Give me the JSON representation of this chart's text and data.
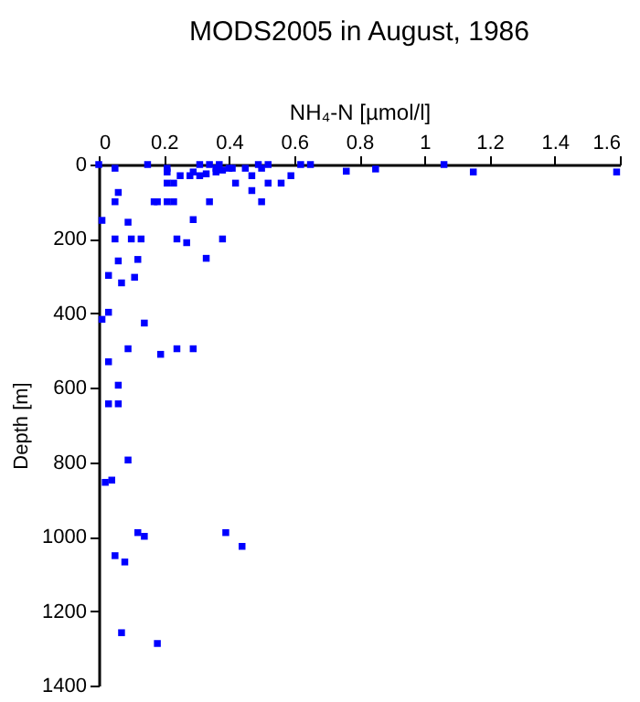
{
  "chart_data": {
    "type": "scatter",
    "title": "MODS2005 in August, 1986",
    "xlabel": "NH₄-N [µmol/l]",
    "ylabel": "Depth [m]",
    "xlim": [
      0,
      1.6
    ],
    "xticks": [
      0,
      0.2,
      0.4,
      0.6,
      0.8,
      1,
      1.2,
      1.4,
      1.6
    ],
    "ylim": [
      1400,
      0
    ],
    "yticks": [
      0,
      200,
      400,
      600,
      800,
      1000,
      1200,
      1400
    ],
    "grid": false,
    "marker": "square",
    "series": [
      {
        "color": "#0000ff",
        "x": [
          0.0,
          0.05,
          0.15,
          0.21,
          0.21,
          0.25,
          0.28,
          0.29,
          0.31,
          0.31,
          0.33,
          0.34,
          0.36,
          0.36,
          0.37,
          0.38,
          0.4,
          0.41,
          0.42,
          0.45,
          0.47,
          0.49,
          0.5,
          0.52,
          0.52,
          0.56,
          0.59,
          0.62,
          0.65,
          0.76,
          0.85,
          1.06,
          1.15,
          1.59,
          0.47,
          0.5,
          0.06,
          0.05,
          0.17,
          0.18,
          0.21,
          0.23,
          0.21,
          0.23,
          0.34,
          0.29,
          0.01,
          0.09,
          0.05,
          0.1,
          0.13,
          0.24,
          0.27,
          0.38,
          0.33,
          0.06,
          0.12,
          0.03,
          0.11,
          0.07,
          0.03,
          0.01,
          0.14,
          0.09,
          0.19,
          0.24,
          0.29,
          0.03,
          0.06,
          0.03,
          0.06,
          0.09,
          0.02,
          0.04,
          0.12,
          0.14,
          0.39,
          0.44,
          0.05,
          0.08,
          0.07,
          0.18
        ],
        "values": [
          0,
          10,
          0,
          10,
          20,
          30,
          30,
          20,
          0,
          30,
          25,
          0,
          10,
          20,
          0,
          15,
          10,
          10,
          50,
          10,
          30,
          0,
          10,
          0,
          50,
          50,
          30,
          0,
          0,
          18,
          12,
          0,
          20,
          20,
          70,
          100,
          75,
          100,
          100,
          100,
          100,
          100,
          50,
          50,
          100,
          148,
          150,
          155,
          200,
          200,
          200,
          200,
          210,
          200,
          252,
          259,
          255,
          298,
          303,
          318,
          397,
          416,
          426,
          495,
          510,
          495,
          495,
          530,
          593,
          643,
          643,
          794,
          854,
          848,
          989,
          999,
          989,
          1026,
          1051,
          1068,
          1258,
          1287
        ]
      }
    ]
  }
}
